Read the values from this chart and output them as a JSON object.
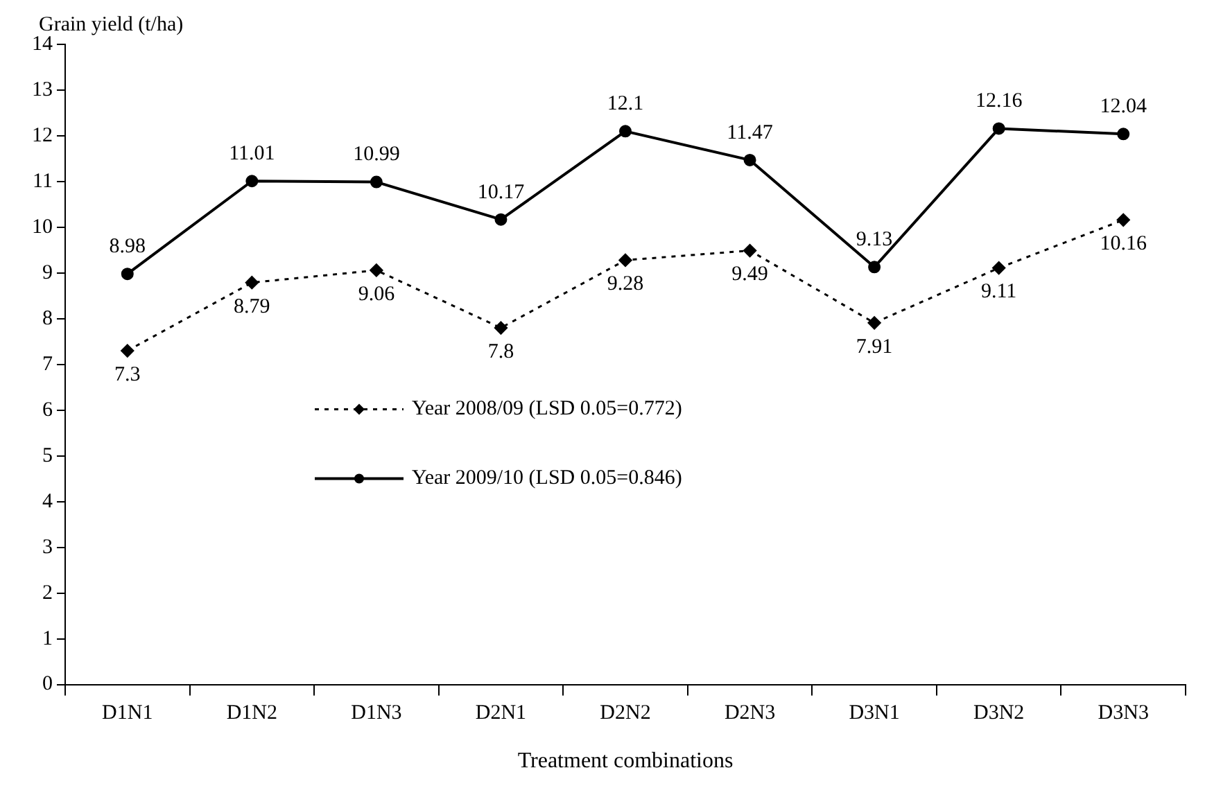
{
  "chart_data": {
    "type": "line",
    "ylabel": "Grain yield (t/ha)",
    "xlabel": "Treatment combinations",
    "categories": [
      "D1N1",
      "D1N2",
      "D1N3",
      "D2N1",
      "D2N2",
      "D2N3",
      "D3N1",
      "D3N2",
      "D3N3"
    ],
    "series": [
      {
        "name": "Year 2008/09 (LSD 0.05=0.772)",
        "color": "#000000",
        "line_style": "dotted",
        "marker": "diamond",
        "values": [
          7.3,
          8.79,
          9.06,
          7.8,
          9.28,
          9.49,
          7.91,
          9.11,
          10.16
        ]
      },
      {
        "name": "Year 2009/10 (LSD 0.05=0.846)",
        "color": "#000000",
        "line_style": "solid",
        "marker": "circle",
        "values": [
          8.98,
          11.01,
          10.99,
          10.17,
          12.1,
          11.47,
          9.13,
          12.16,
          12.04
        ]
      }
    ],
    "ylim": [
      0,
      14
    ],
    "yticks": [
      0,
      1,
      2,
      3,
      4,
      5,
      6,
      7,
      8,
      9,
      10,
      11,
      12,
      13,
      14
    ],
    "grid": false,
    "legend": "center left",
    "data_labels": true
  }
}
